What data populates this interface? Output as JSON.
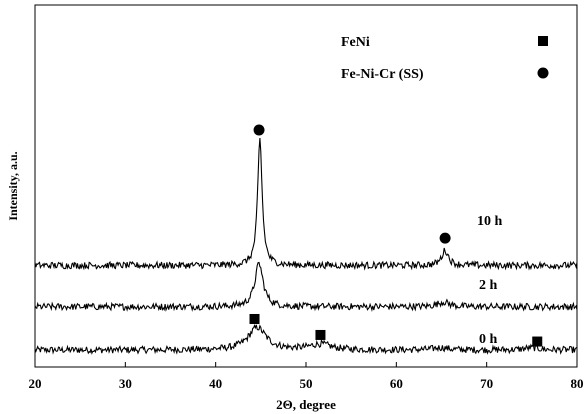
{
  "chart_data": {
    "type": "line",
    "xlabel": "2Θ, degree",
    "ylabel": "Intensity, a.u.",
    "xlim": [
      20,
      80
    ],
    "x_ticks": [
      "20",
      "30",
      "40",
      "50",
      "60",
      "70",
      "80"
    ],
    "grid": false,
    "legend_position": "top-right",
    "legend": [
      {
        "label": "FeNi",
        "marker": "square"
      },
      {
        "label": "Fe-Ni-Cr (SS)",
        "marker": "circle"
      }
    ],
    "series": [
      {
        "name": "0 h",
        "baseline": 0.0,
        "noise": 0.018,
        "peaks": [
          {
            "center": 44.6,
            "height": 0.12,
            "width": 1.2
          },
          {
            "center": 51.6,
            "height": 0.03,
            "width": 1.4
          },
          {
            "center": 64.9,
            "height": 0.012,
            "width": 1.0
          },
          {
            "center": 75.0,
            "height": 0.012,
            "width": 1.0
          }
        ]
      },
      {
        "name": "2 h",
        "baseline": 0.23,
        "noise": 0.018,
        "peaks": [
          {
            "center": 44.8,
            "height": 0.23,
            "width": 0.55
          },
          {
            "center": 65.2,
            "height": 0.025,
            "width": 0.8
          }
        ]
      },
      {
        "name": "10 h",
        "baseline": 0.45,
        "noise": 0.018,
        "peaks": [
          {
            "center": 44.9,
            "height": 0.67,
            "width": 0.3
          },
          {
            "center": 65.4,
            "height": 0.08,
            "width": 0.45
          }
        ]
      }
    ],
    "annotations": [
      {
        "marker": "circle",
        "x": 44.8,
        "y": 1.17
      },
      {
        "marker": "circle",
        "x": 65.4,
        "y": 0.595
      },
      {
        "marker": "square",
        "x": 44.3,
        "y": 0.165
      },
      {
        "marker": "square",
        "x": 51.6,
        "y": 0.08
      },
      {
        "marker": "square",
        "x": 75.6,
        "y": 0.045
      }
    ]
  }
}
